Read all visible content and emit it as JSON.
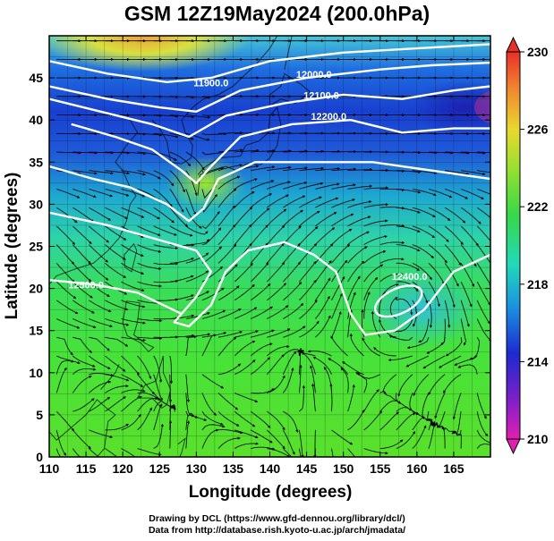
{
  "title": "GSM 12Z19May2024 (200.0hPa)",
  "footer": {
    "line1": "Drawing by DCL (https://www.gfd-dennou.org/library/dcl/)",
    "line2": "Data from http://database.rish.kyoto-u.ac.jp/arch/jmadata/"
  },
  "chart_data": {
    "type": "heatmap",
    "xlabel": "Longitude (degrees)",
    "ylabel": "Latitude (degrees)",
    "xlim": [
      110,
      170
    ],
    "ylim": [
      0,
      50
    ],
    "xticks": [
      "110",
      "115",
      "120",
      "125",
      "130",
      "135",
      "140",
      "145",
      "150",
      "155",
      "160",
      "165"
    ],
    "yticks": [
      "0",
      "5",
      "10",
      "15",
      "20",
      "25",
      "30",
      "35",
      "40",
      "45"
    ],
    "colorbar": {
      "range": [
        210,
        230
      ],
      "tick_labels": [
        "230",
        "226",
        "222",
        "218",
        "214",
        "210"
      ],
      "tick_values": [
        230,
        226,
        222,
        218,
        214,
        210
      ]
    },
    "contour_labels": [
      {
        "text": "11900.0",
        "lon": 132,
        "lat": 44
      },
      {
        "text": "12000.0",
        "lon": 146,
        "lat": 45
      },
      {
        "text": "12100.0",
        "lon": 147,
        "lat": 42.5
      },
      {
        "text": "12200.0",
        "lon": 148,
        "lat": 40
      },
      {
        "text": "12400.0",
        "lon": 159,
        "lat": 21
      },
      {
        "text": "12500.0",
        "lon": 115,
        "lat": 20
      }
    ]
  }
}
